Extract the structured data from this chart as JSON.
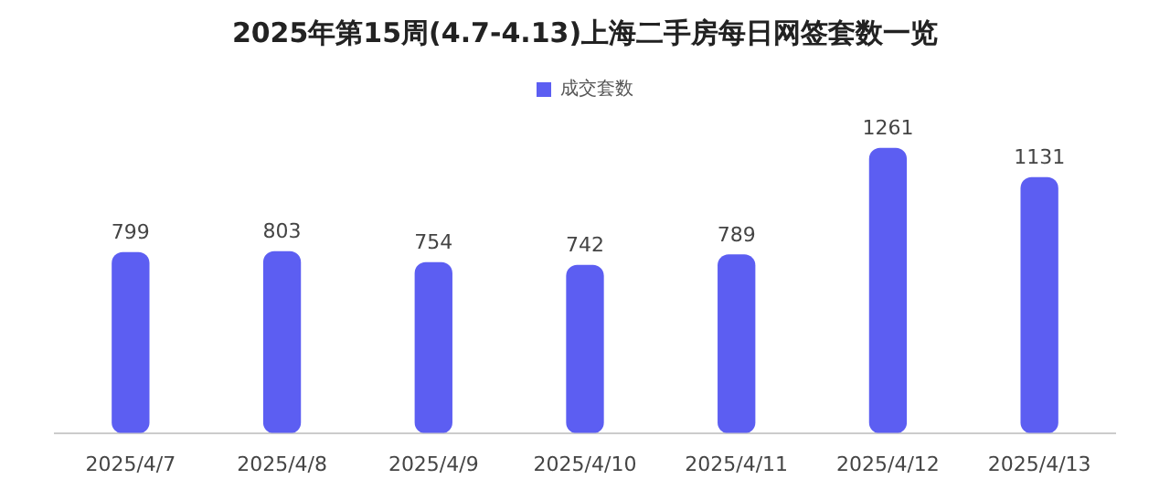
{
  "chart_data": {
    "type": "bar",
    "title": "2025年第15周(4.7-4.13)上海二手房每日网签套数一览",
    "categories": [
      "2025/4/7",
      "2025/4/8",
      "2025/4/9",
      "2025/4/10",
      "2025/4/11",
      "2025/4/12",
      "2025/4/13"
    ],
    "series": [
      {
        "name": "成交套数",
        "color": "#5c5ef2",
        "values": [
          799,
          803,
          754,
          742,
          789,
          1261,
          1131
        ]
      }
    ],
    "data_labels": true,
    "legend": "top",
    "grid": false,
    "tick_labels": "x"
  }
}
